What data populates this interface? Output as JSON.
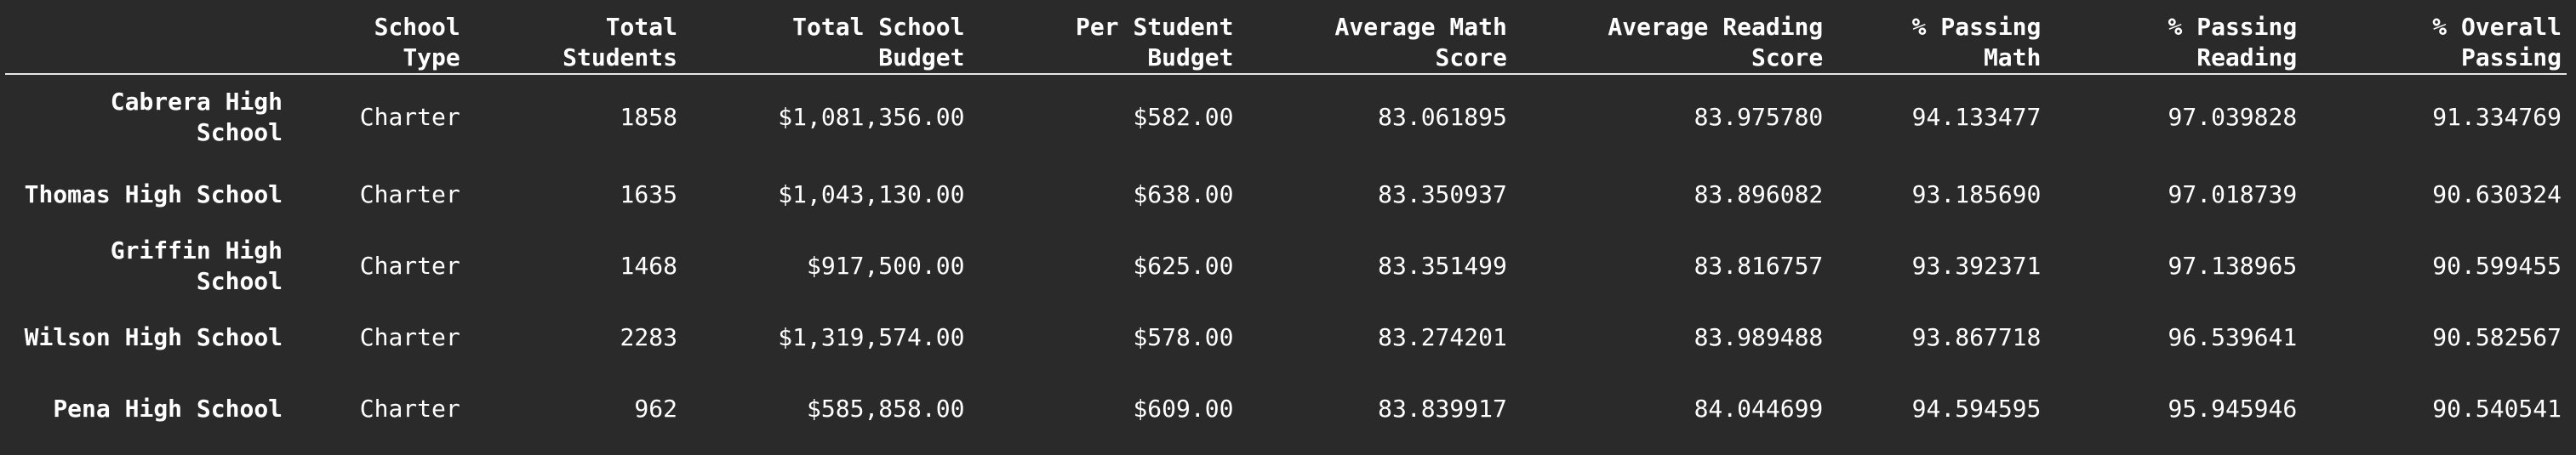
{
  "table": {
    "columns": [
      "",
      "School Type",
      "Total Students",
      "Total School Budget",
      "Per Student Budget",
      "Average Math Score",
      "Average Reading Score",
      "% Passing Math",
      "% Passing Reading",
      "% Overall Passing"
    ],
    "header_lines": [
      [
        ""
      ],
      [
        "School",
        "Type"
      ],
      [
        "Total",
        "Students"
      ],
      [
        "Total School",
        "Budget"
      ],
      [
        "Per Student",
        "Budget"
      ],
      [
        "Average Math",
        "Score"
      ],
      [
        "Average Reading",
        "Score"
      ],
      [
        "% Passing",
        "Math"
      ],
      [
        "% Passing",
        "Reading"
      ],
      [
        "% Overall",
        "Passing"
      ]
    ],
    "rows": [
      {
        "index_lines": [
          "Cabrera High",
          "School"
        ],
        "cells": [
          "Charter",
          "1858",
          "$1,081,356.00",
          "$582.00",
          "83.061895",
          "83.975780",
          "94.133477",
          "97.039828",
          "91.334769"
        ]
      },
      {
        "index_lines": [
          "Thomas High School"
        ],
        "cells": [
          "Charter",
          "1635",
          "$1,043,130.00",
          "$638.00",
          "83.350937",
          "83.896082",
          "93.185690",
          "97.018739",
          "90.630324"
        ]
      },
      {
        "index_lines": [
          "Griffin High",
          "School"
        ],
        "cells": [
          "Charter",
          "1468",
          "$917,500.00",
          "$625.00",
          "83.351499",
          "83.816757",
          "93.392371",
          "97.138965",
          "90.599455"
        ]
      },
      {
        "index_lines": [
          "Wilson High School"
        ],
        "cells": [
          "Charter",
          "2283",
          "$1,319,574.00",
          "$578.00",
          "83.274201",
          "83.989488",
          "93.867718",
          "96.539641",
          "90.582567"
        ]
      },
      {
        "index_lines": [
          "Pena High School"
        ],
        "cells": [
          "Charter",
          "962",
          "$585,858.00",
          "$609.00",
          "83.839917",
          "84.044699",
          "94.594595",
          "95.945946",
          "90.540541"
        ]
      }
    ]
  },
  "colors": {
    "background": "#2b2a2b",
    "text": "#ffffff",
    "rule": "#e8e8e8"
  }
}
